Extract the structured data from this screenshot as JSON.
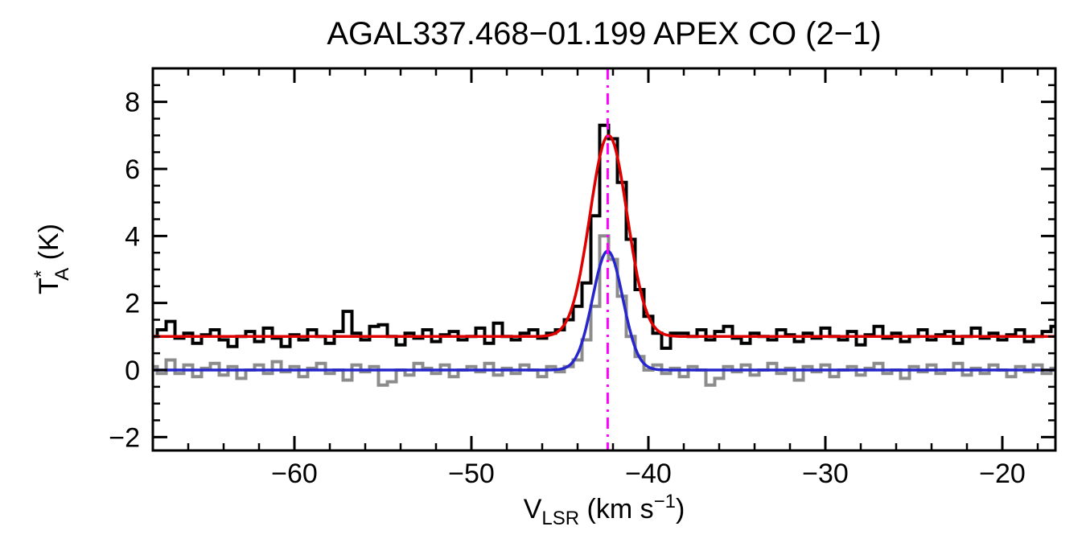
{
  "page": {
    "background": "#ffffff"
  },
  "chart_data": {
    "type": "line",
    "title": "AGAL337.468−01.199  APEX CO (2−1)",
    "xlabel": {
      "main": "V",
      "sub": "LSR",
      "unit_prefix": " (km s",
      "unit_exp": "−1",
      "unit_suffix": ")"
    },
    "ylabel": {
      "main": "T",
      "sup": "*",
      "sub": "A",
      "unit": " (K)"
    },
    "xlim": [
      -68,
      -17
    ],
    "ylim": [
      -2.4,
      9.0
    ],
    "x_major_ticks": [
      -60,
      -50,
      -40,
      -30,
      -20
    ],
    "x_tick_labels": [
      "−60",
      "−50",
      "−40",
      "−30",
      "−20"
    ],
    "x_minor_interval": 2,
    "y_major_ticks": [
      -2,
      0,
      2,
      4,
      6,
      8
    ],
    "y_tick_labels": [
      "−2",
      "0",
      "2",
      "4",
      "6",
      "8"
    ],
    "y_minor_interval": 0.5,
    "axes": {
      "color": "#000000",
      "line_width": 3,
      "grid": false,
      "legend": "none"
    },
    "series": [
      {
        "name": "observed-spectrum",
        "style": "histogram",
        "color": "#000000",
        "line_width": 4,
        "x_start": -68,
        "x_step": 0.5,
        "values": [
          1.0,
          1.2,
          1.45,
          0.95,
          1.1,
          0.8,
          1.05,
          1.2,
          0.9,
          0.7,
          1.0,
          1.15,
          0.85,
          1.25,
          0.95,
          0.7,
          1.05,
          0.9,
          1.2,
          1.0,
          0.8,
          1.15,
          1.75,
          1.1,
          0.9,
          1.3,
          1.35,
          1.0,
          0.75,
          1.1,
          0.95,
          1.2,
          0.85,
          1.05,
          1.15,
          0.9,
          1.0,
          1.25,
          0.8,
          1.4,
          1.0,
          0.9,
          1.1,
          1.2,
          0.95,
          1.1,
          1.2,
          1.5,
          1.9,
          2.6,
          4.6,
          7.3,
          6.9,
          5.6,
          3.9,
          2.4,
          1.6,
          1.1,
          0.65,
          1.1,
          1.1,
          1.0,
          1.2,
          0.9,
          1.15,
          1.3,
          0.95,
          0.8,
          1.1,
          1.0,
          0.9,
          1.2,
          1.05,
          0.85,
          1.1,
          0.95,
          1.25,
          1.0,
          0.9,
          1.15,
          0.75,
          1.05,
          1.3,
          0.95,
          1.1,
          0.85,
          1.0,
          1.2,
          0.9,
          1.05,
          1.15,
          0.8,
          1.0,
          1.25,
          0.95,
          1.1,
          0.9,
          1.05,
          1.2,
          0.85,
          1.0,
          1.15,
          1.3
        ]
      },
      {
        "name": "baseline-subtracted-spectrum",
        "style": "histogram",
        "color": "#8c8c8c",
        "line_width": 4,
        "x_start": -68,
        "x_step": 0.5,
        "values": [
          0.1,
          -0.1,
          0.3,
          -0.1,
          0.15,
          -0.2,
          0.05,
          0.2,
          -0.15,
          0.1,
          -0.25,
          0.0,
          0.15,
          -0.1,
          0.25,
          -0.05,
          0.1,
          -0.2,
          0.05,
          0.2,
          -0.1,
          0.0,
          -0.3,
          0.15,
          -0.05,
          0.1,
          -0.45,
          -0.35,
          0.0,
          -0.15,
          0.2,
          0.05,
          -0.1,
          0.15,
          -0.2,
          0.0,
          0.1,
          -0.05,
          0.2,
          -0.15,
          0.05,
          -0.1,
          0.15,
          0.0,
          -0.2,
          0.1,
          -0.05,
          0.1,
          0.3,
          0.9,
          1.9,
          4.0,
          3.3,
          2.2,
          1.0,
          0.4,
          0.0,
          0.15,
          -0.1,
          0.05,
          -0.2,
          0.1,
          0.0,
          -0.45,
          -0.25,
          0.1,
          -0.05,
          0.15,
          -0.15,
          0.0,
          0.2,
          -0.1,
          0.05,
          -0.3,
          0.1,
          -0.05,
          0.15,
          -0.2,
          0.0,
          0.1,
          -0.15,
          0.05,
          0.2,
          -0.1,
          0.0,
          -0.25,
          0.1,
          -0.05,
          0.15,
          -0.1,
          0.0,
          0.2,
          -0.15,
          0.05,
          -0.1,
          0.15,
          0.0,
          -0.2,
          0.1,
          -0.05,
          0.15,
          -0.1,
          0.05
        ]
      }
    ],
    "fits": [
      {
        "name": "gaussian-fit-observed",
        "color": "#e00000",
        "line_width": 3.5,
        "baseline": 1.0,
        "amplitude": 6.0,
        "center": -42.25,
        "sigma": 1.05
      },
      {
        "name": "gaussian-fit-subtracted",
        "color": "#2626cc",
        "line_width": 3.5,
        "baseline": 0.0,
        "amplitude": 3.55,
        "center": -42.3,
        "sigma": 0.85
      }
    ],
    "vline": {
      "name": "lsr-velocity-marker",
      "x": -42.3,
      "color": "#ff00ff",
      "style": "dash-dot",
      "line_width": 3
    }
  }
}
